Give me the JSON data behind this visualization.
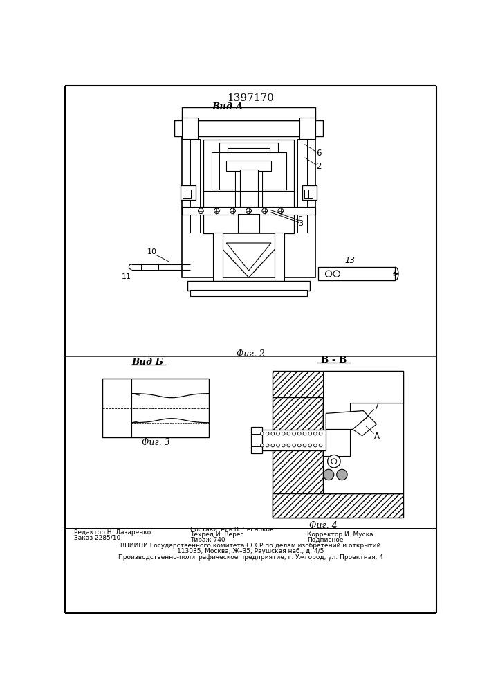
{
  "patent_number": "1397170",
  "view_a_label": "Вид А",
  "view_b_label": "Вид Б",
  "section_bb_label": "В - В",
  "fig2_label": "Фиг. 2",
  "fig3_label": "Фиг. 3",
  "fig4_label": "Фиг. 4",
  "label_6": "6",
  "label_2": "2",
  "label_3": "3",
  "label_G": "Г",
  "label_10": "10",
  "label_11": "11",
  "label_13": "13",
  "label_7": "7",
  "label_A": "А",
  "editor_line": "Редактор Н. Лазаренко",
  "order_line": "Заказ 2285/10",
  "composer_line": "Составитель В. Чесноков",
  "techred_line": "Техред И. Верес",
  "tirazh_line": "Тираж 740",
  "corrector_line": "Корректор И. Муска",
  "podpisnoe_line": "Подписное",
  "vniiipi_line": "ВНИИПИ Государственного комитета СССР по делам изобретений и открытий",
  "address1_line": "113035, Москва, Ж–35, Раушская наб., д. 4/5",
  "address2_line": "Производственно-полиграфическое предприятие, г. Ужгород, ул. Проектная, 4",
  "bg_color": "#ffffff",
  "lc": "#000000"
}
